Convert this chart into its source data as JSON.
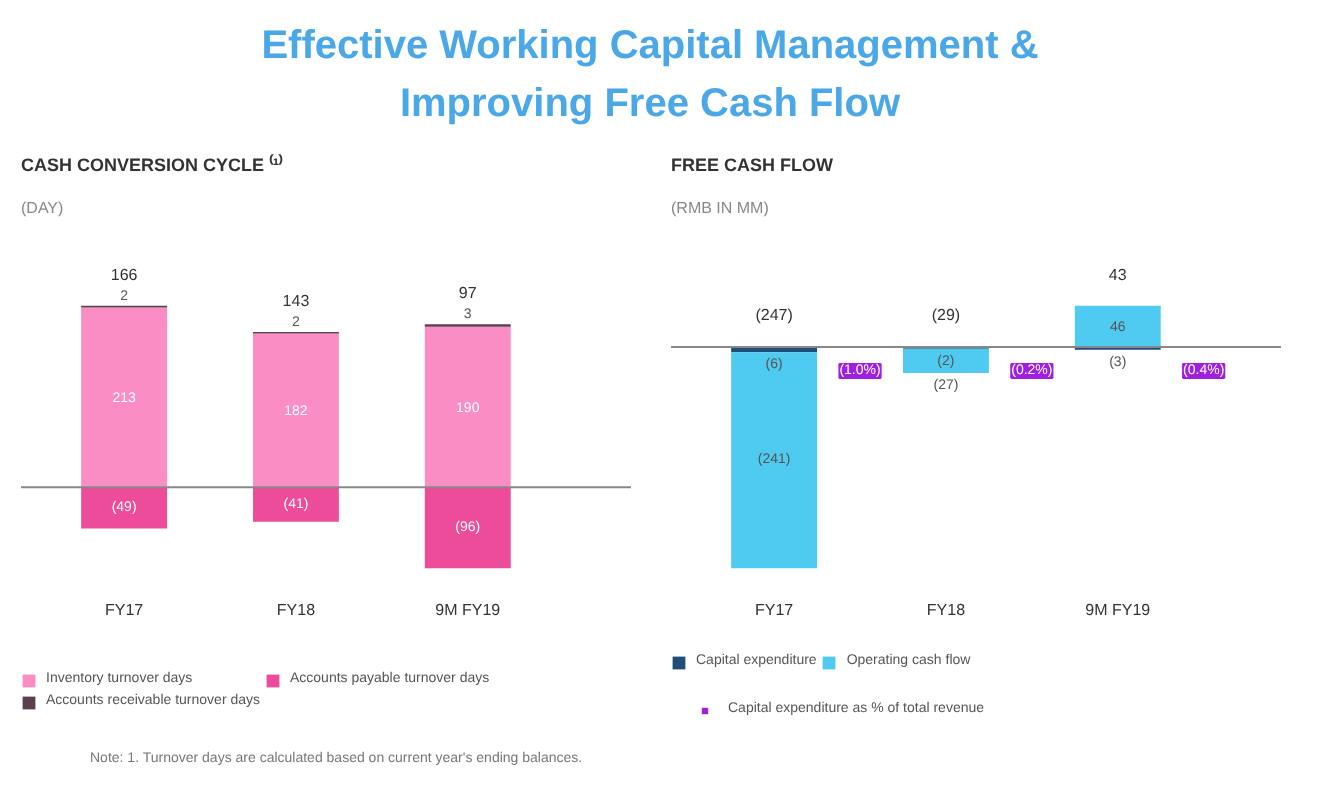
{
  "chart_data": [
    {
      "type": "bar",
      "title": "CASH CONVERSION CYCLE ⁽¹⁾",
      "subtitle": "(DAY)",
      "categories": [
        "FY17",
        "FY18",
        "9M FY19"
      ],
      "stacked": true,
      "legend": "bottom",
      "series": [
        {
          "name": "Inventory turnover days",
          "color": "#f98dc4",
          "values": [
            213,
            182,
            190
          ],
          "value_labels": [
            "213",
            "182",
            "190"
          ]
        },
        {
          "name": "Accounts receivable turnover days",
          "color": "#5b4150",
          "values": [
            2,
            2,
            3
          ],
          "value_labels": [
            "2",
            "2",
            "3"
          ]
        },
        {
          "name": "Accounts payable turnover days",
          "color": "#ec4c9a",
          "values": [
            -49,
            -41,
            -96
          ],
          "value_labels": [
            "(49)",
            "(41)",
            "(96)"
          ]
        }
      ],
      "totals": [
        "166",
        "143",
        "97"
      ],
      "annotations": [
        "Effective Working Capital Management & Improving Free Cash Flow",
        "Note: 1. Turnover days are calculated based on current year's ending balances."
      ]
    },
    {
      "type": "bar",
      "title": "FREE CASH FLOW",
      "subtitle": "(RMB IN MM)",
      "categories": [
        "FY17",
        "FY18",
        "9M FY19"
      ],
      "stacked": true,
      "legend": "bottom",
      "series": [
        {
          "name": "Capital expenditure",
          "color": "#1f4e79",
          "values": [
            -6,
            -2,
            -3
          ],
          "value_labels": [
            "(6)",
            "(2)",
            "(3)"
          ]
        },
        {
          "name": "Operating cash flow",
          "color": "#4fcaf0",
          "values": [
            -241,
            -27,
            46
          ],
          "value_labels": [
            "(241)",
            "(27)",
            "46"
          ]
        }
      ],
      "totals": [
        "(247)",
        "(29)",
        "43"
      ],
      "annotations": [
        "(1.0%)",
        "(0.2%)",
        "(0.4%)",
        "Capital expenditure as % of total revenue"
      ]
    }
  ]
}
